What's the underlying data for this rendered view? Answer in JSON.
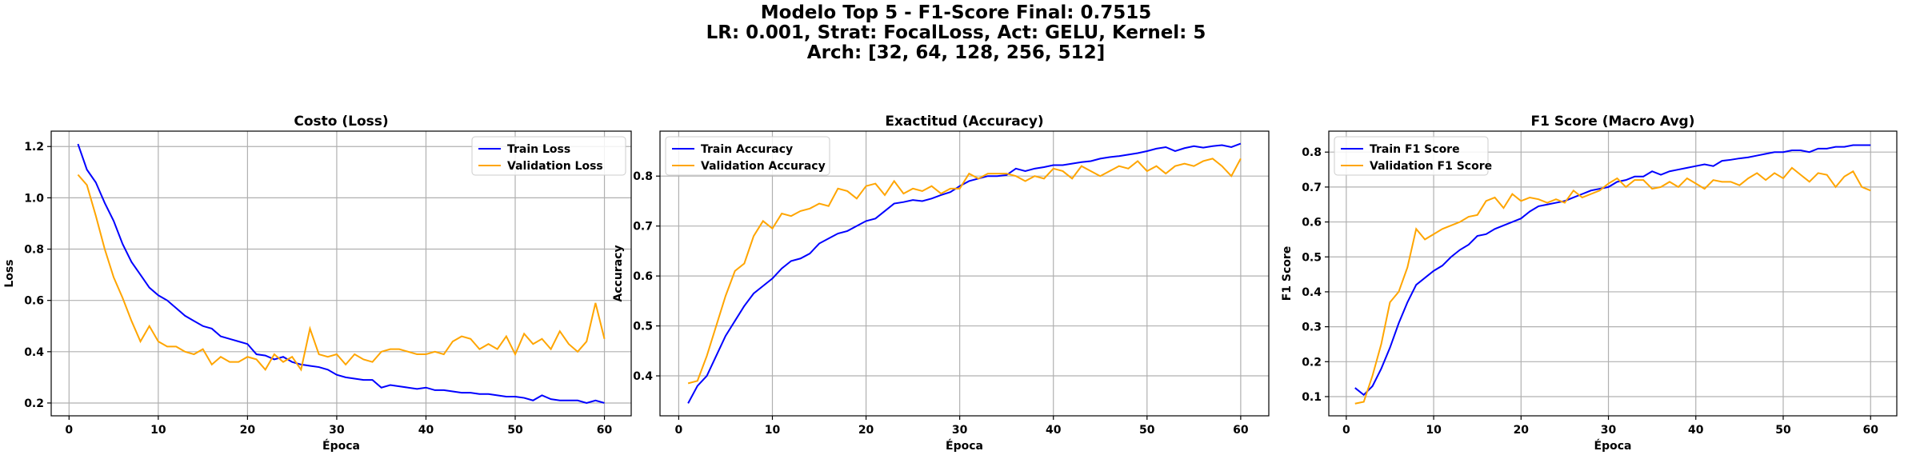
{
  "figure": {
    "suptitle": [
      "Modelo Top 5 - F1-Score Final: 0.7515",
      "LR: 0.001, Strat: FocalLoss, Act: GELU, Kernel: 5",
      "Arch: [32, 64, 128, 256, 512]"
    ]
  },
  "colors": {
    "train": "#0000ff",
    "validation": "#ffa500",
    "grid": "#b0b0b0"
  },
  "chart_data": [
    {
      "type": "line",
      "title": "Costo (Loss)",
      "xlabel": "Época",
      "ylabel": "Loss",
      "xlim": [
        -2,
        63
      ],
      "ylim": [
        0.15,
        1.26
      ],
      "xticks": [
        0,
        10,
        20,
        30,
        40,
        50,
        60
      ],
      "yticks": [
        0.2,
        0.4,
        0.6,
        0.8,
        1.0,
        1.2
      ],
      "ytick_labels": [
        "0.2",
        "0.4",
        "0.6",
        "0.8",
        "1.0",
        "1.2"
      ],
      "grid": true,
      "legend_position": "upper right",
      "x": [
        1,
        2,
        3,
        4,
        5,
        6,
        7,
        8,
        9,
        10,
        11,
        12,
        13,
        14,
        15,
        16,
        17,
        18,
        19,
        20,
        21,
        22,
        23,
        24,
        25,
        26,
        27,
        28,
        29,
        30,
        31,
        32,
        33,
        34,
        35,
        36,
        37,
        38,
        39,
        40,
        41,
        42,
        43,
        44,
        45,
        46,
        47,
        48,
        49,
        50,
        51,
        52,
        53,
        54,
        55,
        56,
        57,
        58,
        59,
        60
      ],
      "series": [
        {
          "name": "Train Loss",
          "color": "#0000ff",
          "values": [
            1.21,
            1.11,
            1.06,
            0.98,
            0.91,
            0.82,
            0.75,
            0.7,
            0.65,
            0.62,
            0.6,
            0.57,
            0.54,
            0.52,
            0.5,
            0.49,
            0.46,
            0.45,
            0.44,
            0.43,
            0.39,
            0.385,
            0.37,
            0.38,
            0.36,
            0.35,
            0.345,
            0.34,
            0.33,
            0.31,
            0.3,
            0.295,
            0.29,
            0.29,
            0.26,
            0.27,
            0.265,
            0.26,
            0.255,
            0.26,
            0.25,
            0.25,
            0.245,
            0.24,
            0.24,
            0.235,
            0.235,
            0.23,
            0.225,
            0.225,
            0.22,
            0.21,
            0.23,
            0.215,
            0.21,
            0.21,
            0.21,
            0.2,
            0.21,
            0.2
          ]
        },
        {
          "name": "Validation Loss",
          "color": "#ffa500",
          "values": [
            1.09,
            1.05,
            0.93,
            0.8,
            0.69,
            0.61,
            0.52,
            0.44,
            0.5,
            0.44,
            0.42,
            0.42,
            0.4,
            0.39,
            0.41,
            0.35,
            0.38,
            0.36,
            0.36,
            0.38,
            0.37,
            0.33,
            0.39,
            0.36,
            0.38,
            0.33,
            0.49,
            0.39,
            0.38,
            0.39,
            0.35,
            0.39,
            0.37,
            0.36,
            0.4,
            0.41,
            0.41,
            0.4,
            0.39,
            0.39,
            0.4,
            0.39,
            0.44,
            0.46,
            0.45,
            0.41,
            0.43,
            0.41,
            0.46,
            0.39,
            0.47,
            0.43,
            0.45,
            0.41,
            0.48,
            0.43,
            0.4,
            0.44,
            0.59,
            0.45
          ]
        }
      ]
    },
    {
      "type": "line",
      "title": "Exactitud (Accuracy)",
      "xlabel": "Época",
      "ylabel": "Accuracy",
      "xlim": [
        -2,
        63
      ],
      "ylim": [
        0.32,
        0.89
      ],
      "xticks": [
        0,
        10,
        20,
        30,
        40,
        50,
        60
      ],
      "yticks": [
        0.4,
        0.5,
        0.6,
        0.7,
        0.8
      ],
      "ytick_labels": [
        "0.4",
        "0.5",
        "0.6",
        "0.7",
        "0.8"
      ],
      "grid": true,
      "legend_position": "upper left",
      "x": [
        1,
        2,
        3,
        4,
        5,
        6,
        7,
        8,
        9,
        10,
        11,
        12,
        13,
        14,
        15,
        16,
        17,
        18,
        19,
        20,
        21,
        22,
        23,
        24,
        25,
        26,
        27,
        28,
        29,
        30,
        31,
        32,
        33,
        34,
        35,
        36,
        37,
        38,
        39,
        40,
        41,
        42,
        43,
        44,
        45,
        46,
        47,
        48,
        49,
        50,
        51,
        52,
        53,
        54,
        55,
        56,
        57,
        58,
        59,
        60
      ],
      "series": [
        {
          "name": "Train Accuracy",
          "color": "#0000ff",
          "values": [
            0.345,
            0.38,
            0.4,
            0.44,
            0.48,
            0.51,
            0.54,
            0.565,
            0.58,
            0.595,
            0.615,
            0.63,
            0.635,
            0.645,
            0.665,
            0.675,
            0.685,
            0.69,
            0.7,
            0.71,
            0.715,
            0.73,
            0.745,
            0.748,
            0.752,
            0.75,
            0.755,
            0.762,
            0.768,
            0.78,
            0.79,
            0.795,
            0.8,
            0.8,
            0.802,
            0.815,
            0.81,
            0.815,
            0.818,
            0.822,
            0.822,
            0.825,
            0.828,
            0.83,
            0.835,
            0.838,
            0.84,
            0.843,
            0.846,
            0.85,
            0.855,
            0.858,
            0.85,
            0.856,
            0.86,
            0.857,
            0.86,
            0.862,
            0.858,
            0.865
          ]
        },
        {
          "name": "Validation Accuracy",
          "color": "#ffa500",
          "values": [
            0.385,
            0.39,
            0.44,
            0.5,
            0.56,
            0.61,
            0.625,
            0.68,
            0.71,
            0.695,
            0.725,
            0.72,
            0.73,
            0.735,
            0.745,
            0.74,
            0.775,
            0.77,
            0.755,
            0.78,
            0.785,
            0.762,
            0.79,
            0.765,
            0.775,
            0.77,
            0.78,
            0.765,
            0.775,
            0.775,
            0.805,
            0.795,
            0.805,
            0.805,
            0.805,
            0.8,
            0.79,
            0.8,
            0.795,
            0.815,
            0.81,
            0.795,
            0.82,
            0.81,
            0.8,
            0.81,
            0.82,
            0.815,
            0.83,
            0.81,
            0.82,
            0.805,
            0.82,
            0.825,
            0.82,
            0.83,
            0.835,
            0.82,
            0.8,
            0.835
          ]
        }
      ]
    },
    {
      "type": "line",
      "title": "F1 Score (Macro Avg)",
      "xlabel": "Época",
      "ylabel": "F1 Score",
      "xlim": [
        -2,
        63
      ],
      "ylim": [
        0.045,
        0.86
      ],
      "xticks": [
        0,
        10,
        20,
        30,
        40,
        50,
        60
      ],
      "yticks": [
        0.1,
        0.2,
        0.3,
        0.4,
        0.5,
        0.6,
        0.7,
        0.8
      ],
      "ytick_labels": [
        "0.1",
        "0.2",
        "0.3",
        "0.4",
        "0.5",
        "0.6",
        "0.7",
        "0.8"
      ],
      "grid": true,
      "legend_position": "upper left",
      "x": [
        1,
        2,
        3,
        4,
        5,
        6,
        7,
        8,
        9,
        10,
        11,
        12,
        13,
        14,
        15,
        16,
        17,
        18,
        19,
        20,
        21,
        22,
        23,
        24,
        25,
        26,
        27,
        28,
        29,
        30,
        31,
        32,
        33,
        34,
        35,
        36,
        37,
        38,
        39,
        40,
        41,
        42,
        43,
        44,
        45,
        46,
        47,
        48,
        49,
        50,
        51,
        52,
        53,
        54,
        55,
        56,
        57,
        58,
        59,
        60
      ],
      "series": [
        {
          "name": "Train F1 Score",
          "color": "#0000ff",
          "values": [
            0.125,
            0.105,
            0.13,
            0.18,
            0.24,
            0.31,
            0.37,
            0.42,
            0.44,
            0.46,
            0.475,
            0.5,
            0.52,
            0.535,
            0.56,
            0.565,
            0.58,
            0.59,
            0.6,
            0.61,
            0.63,
            0.645,
            0.65,
            0.655,
            0.66,
            0.67,
            0.68,
            0.69,
            0.695,
            0.7,
            0.715,
            0.72,
            0.73,
            0.73,
            0.745,
            0.735,
            0.745,
            0.75,
            0.755,
            0.76,
            0.765,
            0.76,
            0.775,
            0.778,
            0.782,
            0.785,
            0.79,
            0.795,
            0.8,
            0.8,
            0.805,
            0.805,
            0.8,
            0.81,
            0.81,
            0.815,
            0.815,
            0.82,
            0.82,
            0.82
          ]
        },
        {
          "name": "Validation F1 Score",
          "color": "#ffa500",
          "values": [
            0.08,
            0.085,
            0.16,
            0.25,
            0.37,
            0.4,
            0.47,
            0.58,
            0.55,
            0.565,
            0.58,
            0.59,
            0.6,
            0.615,
            0.62,
            0.66,
            0.67,
            0.64,
            0.68,
            0.66,
            0.67,
            0.665,
            0.655,
            0.665,
            0.655,
            0.69,
            0.67,
            0.68,
            0.69,
            0.71,
            0.725,
            0.7,
            0.72,
            0.72,
            0.695,
            0.7,
            0.715,
            0.7,
            0.725,
            0.71,
            0.695,
            0.72,
            0.715,
            0.715,
            0.705,
            0.725,
            0.74,
            0.72,
            0.74,
            0.725,
            0.755,
            0.735,
            0.715,
            0.74,
            0.735,
            0.7,
            0.73,
            0.745,
            0.7,
            0.69
          ]
        }
      ]
    }
  ]
}
